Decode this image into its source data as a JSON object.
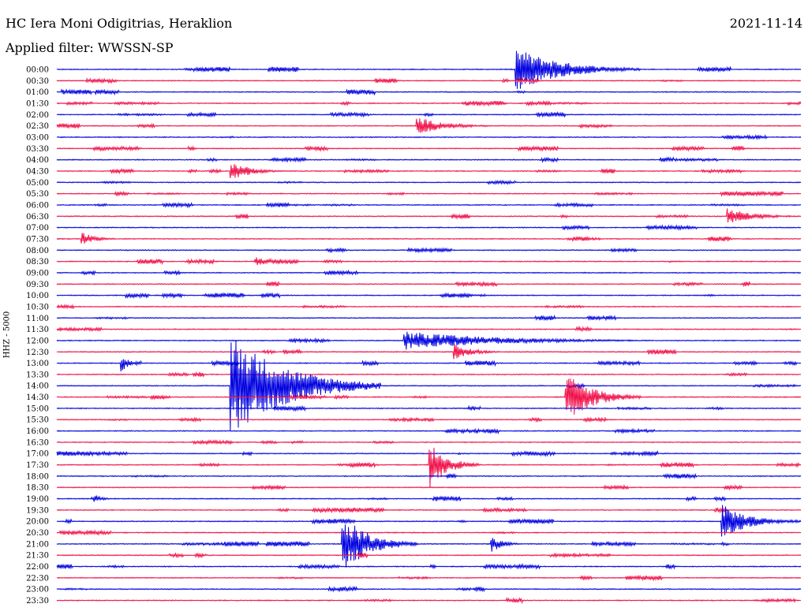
{
  "header": {
    "station": "HC Iera Moni Odigitrias, Heraklion",
    "filter": "Applied filter: WWSSN-SP",
    "date": "2021-11-14"
  },
  "colors": {
    "blue": "#0000e0",
    "red": "#f0104a",
    "text": "#000000",
    "background": "#ffffff"
  },
  "chart_data": {
    "type": "line",
    "ylabel": "HHZ - 5000",
    "ticks": [
      "00:00",
      "00:30",
      "01:00",
      "01:30",
      "02:00",
      "02:30",
      "03:00",
      "03:30",
      "04:00",
      "04:30",
      "05:00",
      "05:30",
      "06:00",
      "06:30",
      "07:00",
      "07:30",
      "08:00",
      "08:30",
      "09:00",
      "09:30",
      "10:00",
      "10:30",
      "11:00",
      "11:30",
      "12:00",
      "12:30",
      "13:00",
      "13:30",
      "14:00",
      "14:30",
      "15:00",
      "15:30",
      "16:00",
      "16:30",
      "17:00",
      "17:30",
      "18:00",
      "18:30",
      "19:00",
      "19:30",
      "20:00",
      "20:30",
      "21:00",
      "21:30",
      "22:00",
      "22:30",
      "23:00",
      "23:30"
    ],
    "series": [
      {
        "color": "blue",
        "min_per_trace": 30
      },
      {
        "color": "red",
        "min_per_trace": 30
      }
    ],
    "events": [
      {
        "trace": "00:00",
        "minute": 18.5,
        "amplitude": 28,
        "duration": 5
      },
      {
        "trace": "02:30",
        "minute": 14.5,
        "amplitude": 12,
        "duration": 3
      },
      {
        "trace": "04:30",
        "minute": 7.0,
        "amplitude": 14,
        "duration": 2
      },
      {
        "trace": "06:30",
        "minute": 27.0,
        "amplitude": 10,
        "duration": 3
      },
      {
        "trace": "07:30",
        "minute": 1.0,
        "amplitude": 9,
        "duration": 1.5
      },
      {
        "trace": "08:30",
        "minute": 8.0,
        "amplitude": 7,
        "duration": 1.5
      },
      {
        "trace": "12:00",
        "minute": 14.0,
        "amplitude": 12,
        "duration": 10
      },
      {
        "trace": "12:30",
        "minute": 16.0,
        "amplitude": 10,
        "duration": 2
      },
      {
        "trace": "13:00",
        "minute": 2.6,
        "amplitude": 12,
        "duration": 0.8
      },
      {
        "trace": "14:00",
        "minute": 7.0,
        "amplitude": 68,
        "duration": 6
      },
      {
        "trace": "14:30",
        "minute": 20.5,
        "amplitude": 32,
        "duration": 3
      },
      {
        "trace": "17:30",
        "minute": 15.0,
        "amplitude": 30,
        "duration": 2
      },
      {
        "trace": "19:00",
        "minute": 1.5,
        "amplitude": 6,
        "duration": 0.8
      },
      {
        "trace": "20:00",
        "minute": 26.8,
        "amplitude": 22,
        "duration": 3
      },
      {
        "trace": "21:00",
        "minute": 11.5,
        "amplitude": 38,
        "duration": 3
      },
      {
        "trace": "21:00",
        "minute": 17.5,
        "amplitude": 12,
        "duration": 1.2
      }
    ]
  }
}
